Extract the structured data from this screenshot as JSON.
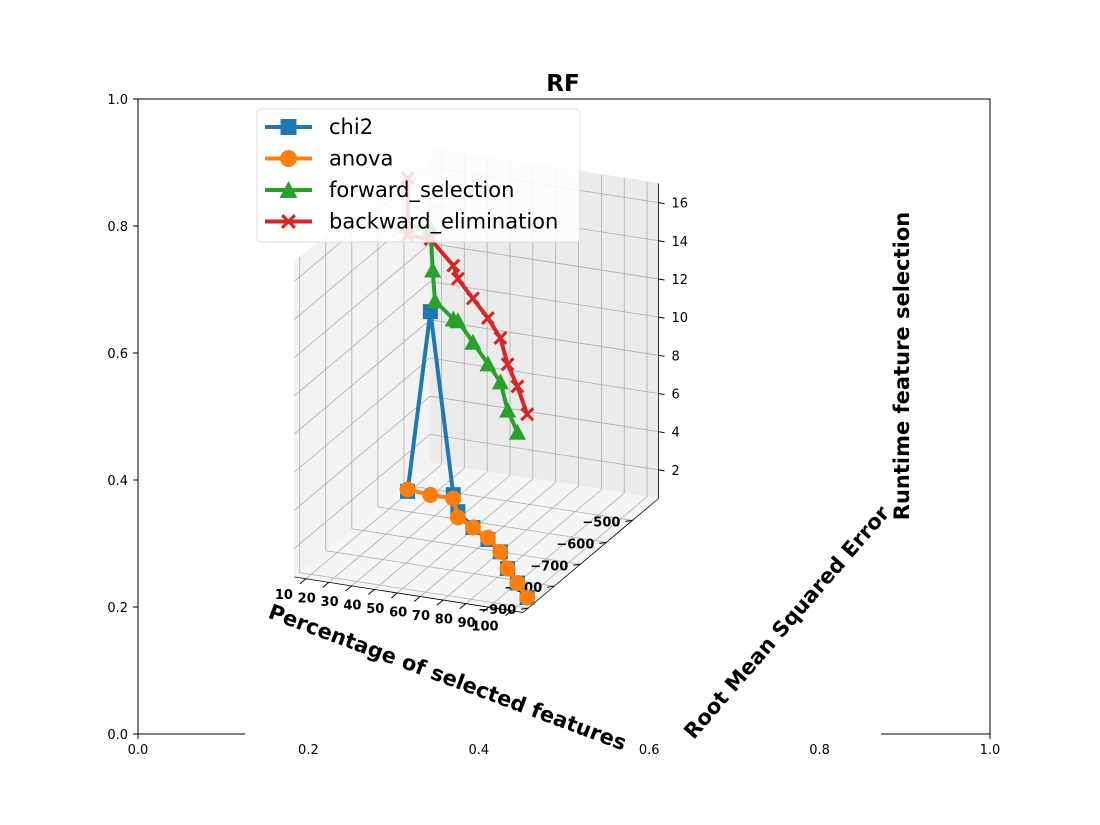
{
  "chart_data": {
    "type": "line",
    "title": "RF",
    "xlabel": "Percentage of selected features",
    "ylabel": "Root Mean Squared Error",
    "zlabel": "Runtime feature selection",
    "x_ticks": [
      "10",
      "20",
      "30",
      "40",
      "50",
      "60",
      "70",
      "80",
      "90",
      "100"
    ],
    "y_ticks": [
      "−900",
      "−800",
      "−700",
      "−600",
      "−500"
    ],
    "z_ticks": [
      "2",
      "4",
      "6",
      "8",
      "10",
      "12",
      "14",
      "16"
    ],
    "xlim": [
      5,
      105
    ],
    "ylim": [
      -920,
      -400
    ],
    "zlim": [
      0.5,
      17
    ],
    "outer_axes": {
      "x_ticks": [
        "0.0",
        "0.2",
        "0.4",
        "0.6",
        "0.8",
        "1.0"
      ],
      "y_ticks": [
        "0.0",
        "0.2",
        "0.4",
        "0.6",
        "0.8",
        "1.0"
      ]
    },
    "legend_position": "upper-left",
    "grid": true,
    "series": [
      {
        "name": "chi2",
        "color": "#1f77b4",
        "marker": "square",
        "points": [
          [
            10,
            -530,
            0.6
          ],
          [
            20,
            -530,
            10.2
          ],
          [
            30,
            -530,
            0.8
          ],
          [
            40,
            -600,
            0.9
          ],
          [
            50,
            -630,
            0.6
          ],
          [
            60,
            -660,
            0.5
          ],
          [
            70,
            -700,
            0.5
          ],
          [
            80,
            -760,
            0.5
          ],
          [
            90,
            -810,
            0.5
          ],
          [
            100,
            -860,
            0.5
          ]
        ]
      },
      {
        "name": "anova",
        "color": "#ff7f0e",
        "marker": "circle",
        "points": [
          [
            10,
            -530,
            0.7
          ],
          [
            20,
            -530,
            0.6
          ],
          [
            30,
            -530,
            0.6
          ],
          [
            40,
            -600,
            0.6
          ],
          [
            50,
            -630,
            0.6
          ],
          [
            60,
            -660,
            0.6
          ],
          [
            70,
            -700,
            0.5
          ],
          [
            80,
            -760,
            0.5
          ],
          [
            90,
            -810,
            0.5
          ],
          [
            100,
            -860,
            0.5
          ]
        ]
      },
      {
        "name": "forward_selection",
        "color": "#2ca02c",
        "marker": "triangle",
        "points": [
          [
            10,
            -530,
            14.5
          ],
          [
            20,
            -530,
            14.6
          ],
          [
            21,
            -530,
            12.4
          ],
          [
            22,
            -530,
            10.8
          ],
          [
            30,
            -530,
            10.0
          ],
          [
            40,
            -600,
            10.9
          ],
          [
            50,
            -630,
            10.3
          ],
          [
            60,
            -660,
            9.7
          ],
          [
            70,
            -700,
            9.4
          ],
          [
            80,
            -760,
            8.8
          ],
          [
            90,
            -810,
            8.4
          ]
        ]
      },
      {
        "name": "backward_elimination",
        "color": "#d62728",
        "marker": "x",
        "points": [
          [
            10,
            -530,
            17.0
          ],
          [
            10,
            -530,
            14.0
          ],
          [
            20,
            -530,
            14.0
          ],
          [
            30,
            -530,
            12.8
          ],
          [
            40,
            -600,
            13.1
          ],
          [
            50,
            -630,
            12.6
          ],
          [
            60,
            -660,
            12.1
          ],
          [
            70,
            -700,
            11.7
          ],
          [
            80,
            -760,
            11.2
          ],
          [
            90,
            -810,
            10.8
          ],
          [
            100,
            -860,
            10.1
          ]
        ]
      }
    ]
  }
}
